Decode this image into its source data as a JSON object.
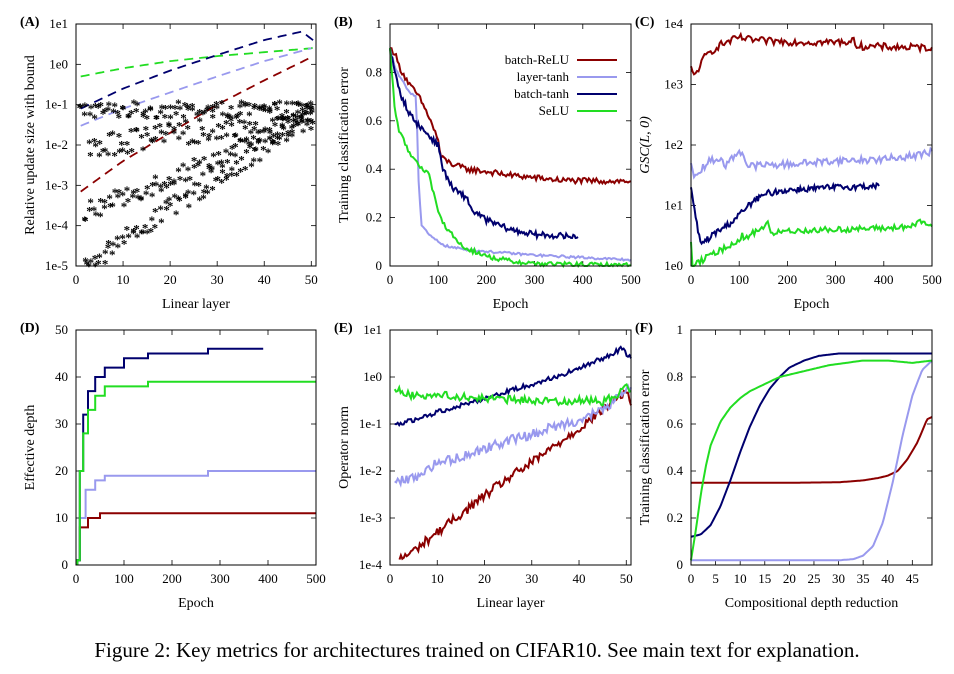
{
  "caption": "Figure 2: Key metrics for architectures trained on CIFAR10. See main text for explanation.",
  "legend": {
    "entries": [
      {
        "name": "batch-ReLU",
        "color": "#8b0000"
      },
      {
        "name": "layer-tanh",
        "color": "#9999ee"
      },
      {
        "name": "batch-tanh",
        "color": "#00006e"
      },
      {
        "name": "SeLU",
        "color": "#22dd22"
      }
    ]
  },
  "chart_data": [
    {
      "panel": "(A)",
      "type": "scatter",
      "xlabel": "Linear layer",
      "ylabel": "Relative update size with bound",
      "xlim": [
        0,
        51
      ],
      "ylim": [
        1e-05,
        10
      ],
      "yscale": "log",
      "xticks": [
        0,
        10,
        20,
        30,
        40,
        50
      ],
      "yticks": [
        1e-05,
        0.0001,
        0.001,
        0.01,
        0.1,
        1,
        10
      ],
      "ytick_labels": [
        "1e-5",
        "1e-4",
        "1e-3",
        "1e-2",
        "1e-1",
        "1e0",
        "1e1"
      ],
      "lines": [
        {
          "name": "SeLU bound",
          "color": "#22dd22",
          "style": "dashed",
          "x": [
            1,
            10,
            20,
            30,
            40,
            50,
            51
          ],
          "y": [
            0.5,
            0.8,
            1.2,
            1.6,
            2.0,
            2.5,
            2.8
          ]
        },
        {
          "name": "batch-tanh bound",
          "color": "#00006e",
          "style": "dashed",
          "x": [
            1,
            10,
            20,
            30,
            40,
            48,
            51
          ],
          "y": [
            0.08,
            0.25,
            0.7,
            1.7,
            4.0,
            6.5,
            3.5
          ]
        },
        {
          "name": "layer-tanh bound",
          "color": "#9999ee",
          "style": "dashed",
          "x": [
            1,
            10,
            20,
            30,
            40,
            50
          ],
          "y": [
            0.03,
            0.08,
            0.2,
            0.5,
            1.2,
            2.5
          ]
        },
        {
          "name": "batch-ReLU bound",
          "color": "#8b0000",
          "style": "dashed",
          "x": [
            1,
            10,
            20,
            30,
            40,
            50
          ],
          "y": [
            0.0007,
            0.004,
            0.02,
            0.1,
            0.4,
            1.5
          ]
        }
      ],
      "series": [
        {
          "name": "SeLU",
          "color": "#22dd22",
          "x_start": 1,
          "x_end": 50,
          "y_start": 0.07,
          "y_end": 0.07,
          "jitter": 0.2
        },
        {
          "name": "batch-tanh",
          "color": "#00006e",
          "x_start": 3,
          "x_end": 50,
          "y_start": 0.008,
          "y_end": 0.06,
          "jitter": 0.3
        },
        {
          "name": "layer-tanh",
          "color": "#9999ee",
          "x_start": 2,
          "x_end": 50,
          "y_start": 0.0002,
          "y_end": 0.04,
          "jitter": 0.25
        },
        {
          "name": "batch-ReLU",
          "color": "#8b0000",
          "x_start": 2,
          "x_end": 50,
          "y_start": 1e-05,
          "y_end": 0.05,
          "jitter": 0.25
        }
      ]
    },
    {
      "panel": "(B)",
      "type": "line",
      "xlabel": "Epoch",
      "ylabel": "Training classification error",
      "xlim": [
        0,
        500
      ],
      "ylim": [
        0,
        1
      ],
      "xticks": [
        0,
        100,
        200,
        300,
        400,
        500
      ],
      "yticks": [
        0,
        0.2,
        0.4,
        0.6,
        0.8,
        1
      ],
      "ytick_labels": [
        "0",
        "0.2",
        "0.4",
        "0.6",
        "0.8",
        "1"
      ],
      "legend": "top-right",
      "series": [
        {
          "name": "batch-ReLU",
          "color": "#8b0000",
          "noise": 0.012,
          "x": [
            0,
            10,
            20,
            40,
            60,
            80,
            100,
            105,
            130,
            160,
            200,
            250,
            300,
            350,
            400,
            500
          ],
          "y": [
            0.9,
            0.88,
            0.82,
            0.75,
            0.7,
            0.62,
            0.52,
            0.45,
            0.42,
            0.4,
            0.39,
            0.375,
            0.365,
            0.355,
            0.352,
            0.35
          ]
        },
        {
          "name": "layer-tanh",
          "color": "#9999ee",
          "noise": 0.005,
          "x": [
            0,
            10,
            20,
            40,
            55,
            58,
            65,
            80,
            100,
            120,
            150,
            200,
            300,
            400,
            500
          ],
          "y": [
            0.9,
            0.82,
            0.78,
            0.72,
            0.7,
            0.4,
            0.17,
            0.13,
            0.1,
            0.08,
            0.07,
            0.06,
            0.045,
            0.035,
            0.025
          ]
        },
        {
          "name": "batch-tanh",
          "color": "#00006e",
          "noise": 0.012,
          "x": [
            0,
            10,
            20,
            40,
            60,
            80,
            100,
            110,
            130,
            160,
            170,
            200,
            250,
            300,
            350,
            390
          ],
          "y": [
            0.9,
            0.8,
            0.72,
            0.63,
            0.58,
            0.54,
            0.5,
            0.4,
            0.32,
            0.28,
            0.23,
            0.19,
            0.15,
            0.13,
            0.125,
            0.12
          ]
        },
        {
          "name": "SeLU",
          "color": "#22dd22",
          "noise": 0.01,
          "x": [
            0,
            10,
            20,
            40,
            60,
            80,
            90,
            100,
            120,
            150,
            200,
            250,
            300,
            400,
            500
          ],
          "y": [
            0.9,
            0.65,
            0.55,
            0.47,
            0.42,
            0.38,
            0.3,
            0.22,
            0.15,
            0.08,
            0.04,
            0.02,
            0.01,
            0.005,
            0.003
          ]
        }
      ]
    },
    {
      "panel": "(C)",
      "type": "line",
      "xlabel": "Epoch",
      "ylabel": "GSC(L, 0)",
      "xlim": [
        0,
        500
      ],
      "ylim": [
        1,
        10000
      ],
      "yscale": "log",
      "xticks": [
        0,
        100,
        200,
        300,
        400,
        500
      ],
      "yticks": [
        1,
        10,
        100,
        1000,
        10000
      ],
      "ytick_labels": [
        "1e0",
        "1e1",
        "1e2",
        "1e3",
        "1e4"
      ],
      "series": [
        {
          "name": "batch-ReLU",
          "color": "#8b0000",
          "noise": 0.06,
          "x": [
            0,
            5,
            15,
            30,
            60,
            100,
            120,
            160,
            200,
            250,
            300,
            340,
            345,
            400,
            450,
            500
          ],
          "y": [
            2000,
            1300,
            1800,
            3000,
            4500,
            6000,
            5500,
            5200,
            5100,
            5000,
            5000,
            5200,
            4300,
            4200,
            4100,
            4100
          ]
        },
        {
          "name": "layer-tanh",
          "color": "#9999ee",
          "noise": 0.06,
          "x": [
            0,
            5,
            20,
            40,
            60,
            70,
            100,
            110,
            115,
            200,
            300,
            400,
            480,
            500
          ],
          "y": [
            50,
            28,
            40,
            55,
            60,
            45,
            80,
            70,
            45,
            48,
            55,
            58,
            70,
            80
          ]
        },
        {
          "name": "batch-tanh",
          "color": "#00006e",
          "noise": 0.05,
          "x": [
            0,
            10,
            20,
            30,
            50,
            80,
            100,
            130,
            160,
            200,
            250,
            300,
            350,
            390
          ],
          "y": [
            20,
            6,
            2.3,
            2.6,
            3.5,
            5,
            7,
            12,
            16,
            18,
            19,
            20,
            20.5,
            21
          ]
        },
        {
          "name": "SeLU",
          "color": "#22dd22",
          "noise": 0.05,
          "x": [
            0,
            3,
            20,
            40,
            60,
            80,
            100,
            105,
            110,
            150,
            160,
            165,
            170,
            200,
            300,
            400,
            460,
            480,
            500
          ],
          "y": [
            2.5,
            1.0,
            1.2,
            1.5,
            1.8,
            2.2,
            2.7,
            3.3,
            2.8,
            4.5,
            5.5,
            3.2,
            3.5,
            3.8,
            4.0,
            4.2,
            4.5,
            5.5,
            4.5
          ]
        }
      ]
    },
    {
      "panel": "(D)",
      "type": "line",
      "step": true,
      "xlabel": "Epoch",
      "ylabel": "Effective depth",
      "xlim": [
        0,
        500
      ],
      "ylim": [
        0,
        50
      ],
      "xticks": [
        0,
        100,
        200,
        300,
        400,
        500
      ],
      "yticks": [
        0,
        10,
        20,
        30,
        40,
        50
      ],
      "ytick_labels": [
        "0",
        "10",
        "20",
        "30",
        "40",
        "50"
      ],
      "series": [
        {
          "name": "batch-ReLU",
          "color": "#8b0000",
          "x": [
            3,
            8,
            25,
            50,
            500
          ],
          "y": [
            1,
            8,
            10,
            11,
            11
          ]
        },
        {
          "name": "layer-tanh",
          "color": "#9999ee",
          "x": [
            3,
            8,
            20,
            40,
            60,
            150,
            275,
            500
          ],
          "y": [
            1,
            10,
            16,
            18,
            19,
            19,
            20,
            20
          ]
        },
        {
          "name": "batch-tanh",
          "color": "#00006e",
          "x": [
            3,
            8,
            15,
            25,
            40,
            60,
            100,
            150,
            275,
            390
          ],
          "y": [
            1,
            20,
            32,
            37,
            40,
            42,
            44,
            45,
            46,
            46
          ]
        },
        {
          "name": "SeLU",
          "color": "#22dd22",
          "x": [
            3,
            8,
            15,
            25,
            40,
            60,
            150,
            500
          ],
          "y": [
            1,
            20,
            28,
            33,
            36,
            38,
            39,
            39
          ]
        }
      ]
    },
    {
      "panel": "(E)",
      "type": "line",
      "xlabel": "Linear layer",
      "ylabel": "Operator norm",
      "xlim": [
        0,
        51
      ],
      "ylim": [
        0.0001,
        10
      ],
      "yscale": "log",
      "xticks": [
        0,
        10,
        20,
        30,
        40,
        50
      ],
      "yticks": [
        0.0001,
        0.001,
        0.01,
        0.1,
        1,
        10
      ],
      "ytick_labels": [
        "1e-4",
        "1e-3",
        "1e-2",
        "1e-1",
        "1e0",
        "1e1"
      ],
      "series": [
        {
          "name": "batch-ReLU",
          "color": "#8b0000",
          "noise": 0.1,
          "x": [
            2,
            5,
            10,
            15,
            20,
            25,
            30,
            35,
            40,
            45,
            48,
            50,
            51
          ],
          "y": [
            0.00013,
            0.0002,
            0.0005,
            0.0012,
            0.003,
            0.007,
            0.015,
            0.035,
            0.08,
            0.2,
            0.35,
            0.5,
            0.25
          ]
        },
        {
          "name": "layer-tanh",
          "color": "#9999ee",
          "noise": 0.1,
          "x": [
            1,
            5,
            10,
            15,
            20,
            25,
            30,
            35,
            40,
            45,
            50,
            51
          ],
          "y": [
            0.006,
            0.007,
            0.015,
            0.02,
            0.03,
            0.045,
            0.06,
            0.09,
            0.12,
            0.2,
            0.5,
            0.6
          ]
        },
        {
          "name": "batch-tanh",
          "color": "#00006e",
          "noise": 0.05,
          "x": [
            1,
            5,
            10,
            15,
            20,
            25,
            30,
            35,
            40,
            45,
            49,
            51
          ],
          "y": [
            0.1,
            0.12,
            0.18,
            0.25,
            0.35,
            0.5,
            0.7,
            1.0,
            1.5,
            2.5,
            4.0,
            2.5
          ]
        },
        {
          "name": "SeLU",
          "color": "#22dd22",
          "noise": 0.08,
          "x": [
            1,
            5,
            10,
            15,
            20,
            25,
            30,
            35,
            40,
            45,
            48,
            50,
            51
          ],
          "y": [
            0.55,
            0.4,
            0.42,
            0.38,
            0.35,
            0.33,
            0.32,
            0.3,
            0.32,
            0.3,
            0.4,
            0.8,
            0.5
          ]
        }
      ]
    },
    {
      "panel": "(F)",
      "type": "line",
      "xlabel": "Compositional depth reduction",
      "ylabel": "Training classification error",
      "xlim": [
        0,
        49
      ],
      "ylim": [
        0,
        1
      ],
      "xticks": [
        0,
        5,
        10,
        15,
        20,
        25,
        30,
        35,
        40,
        45
      ],
      "yticks": [
        0,
        0.2,
        0.4,
        0.6,
        0.8,
        1
      ],
      "ytick_labels": [
        "0",
        "0.2",
        "0.4",
        "0.6",
        "0.8",
        "1"
      ],
      "series": [
        {
          "name": "batch-ReLU",
          "color": "#8b0000",
          "x": [
            0,
            10,
            20,
            30,
            35,
            38,
            40,
            42,
            44,
            46,
            48,
            49
          ],
          "y": [
            0.35,
            0.35,
            0.35,
            0.352,
            0.36,
            0.37,
            0.38,
            0.4,
            0.45,
            0.52,
            0.62,
            0.63
          ]
        },
        {
          "name": "layer-tanh",
          "color": "#9999ee",
          "x": [
            0,
            30,
            33,
            35,
            37,
            39,
            41,
            43,
            45,
            47,
            49
          ],
          "y": [
            0.02,
            0.02,
            0.025,
            0.04,
            0.08,
            0.18,
            0.35,
            0.55,
            0.72,
            0.83,
            0.87
          ]
        },
        {
          "name": "batch-tanh",
          "color": "#00006e",
          "x": [
            0,
            2,
            4,
            6,
            8,
            10,
            12,
            14,
            16,
            18,
            20,
            23,
            26,
            30,
            35,
            49
          ],
          "y": [
            0.12,
            0.13,
            0.17,
            0.25,
            0.36,
            0.48,
            0.59,
            0.68,
            0.75,
            0.8,
            0.84,
            0.87,
            0.89,
            0.9,
            0.9,
            0.9
          ]
        },
        {
          "name": "SeLU",
          "color": "#22dd22",
          "x": [
            0,
            1,
            2,
            3,
            4,
            6,
            8,
            10,
            12,
            15,
            18,
            22,
            28,
            35,
            40,
            45,
            49
          ],
          "y": [
            0.02,
            0.15,
            0.3,
            0.42,
            0.51,
            0.61,
            0.67,
            0.71,
            0.74,
            0.77,
            0.8,
            0.82,
            0.85,
            0.87,
            0.87,
            0.86,
            0.87
          ]
        }
      ]
    }
  ]
}
